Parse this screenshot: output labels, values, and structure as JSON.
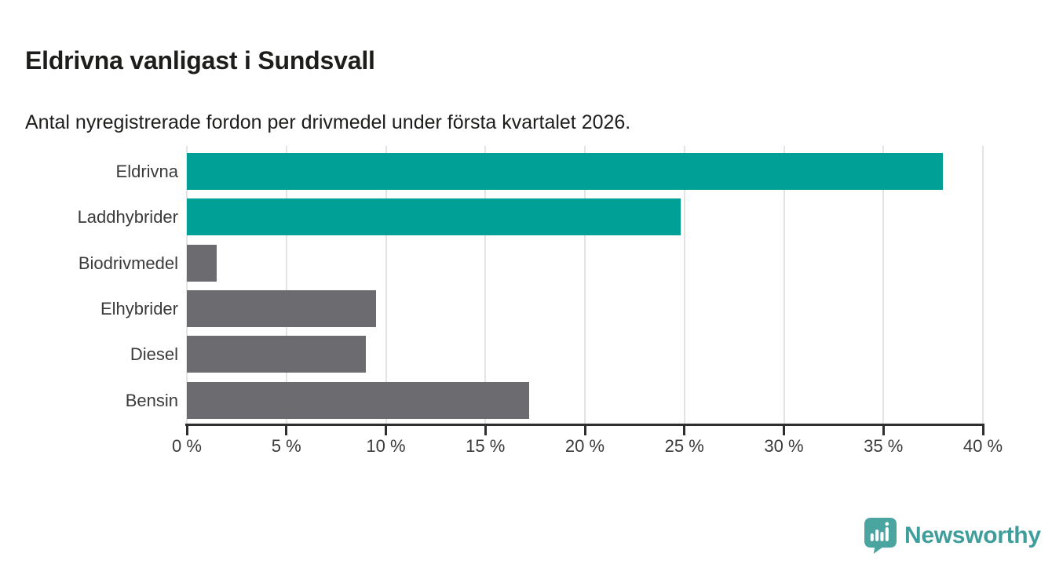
{
  "header": {
    "title": "Eldrivna vanligast i Sundsvall",
    "subtitle": "Antal nyregistrerade fordon per drivmedel under första kvartalet 2026."
  },
  "chart_data": {
    "type": "bar",
    "orientation": "horizontal",
    "title": "Eldrivna vanligast i Sundsvall",
    "subtitle": "Antal nyregistrerade fordon per drivmedel under första kvartalet 2026.",
    "categories": [
      "Eldrivna",
      "Laddhybrider",
      "Biodrivmedel",
      "Elhybrider",
      "Diesel",
      "Bensin"
    ],
    "values": [
      38,
      24.8,
      1.5,
      9.5,
      9,
      17.2
    ],
    "unit": "%",
    "bar_colors": [
      "#00a096",
      "#00a096",
      "#6b6b70",
      "#6b6b70",
      "#6b6b70",
      "#6b6b70"
    ],
    "xlabel": "",
    "ylabel": "",
    "xlim": [
      0,
      40
    ],
    "x_ticks": [
      {
        "value": 0,
        "label": "0 %"
      },
      {
        "value": 5,
        "label": "5 %"
      },
      {
        "value": 10,
        "label": "10 %"
      },
      {
        "value": 15,
        "label": "15 %"
      },
      {
        "value": 20,
        "label": "20 %"
      },
      {
        "value": 25,
        "label": "25 %"
      },
      {
        "value": 30,
        "label": "30 %"
      },
      {
        "value": 35,
        "label": "35 %"
      },
      {
        "value": 40,
        "label": "40 %"
      }
    ],
    "grid": "vertical",
    "legend": "none"
  },
  "footer": {
    "brand": "Newsworthy"
  },
  "colors": {
    "teal": "#00a096",
    "gray": "#6b6b70",
    "grid": "#e4e4e4",
    "axis": "#2e2e2e",
    "text": "#3a3a3a",
    "title_text": "#1d1d1b",
    "brand": "#3f9e9b",
    "background": "#ffffff"
  }
}
